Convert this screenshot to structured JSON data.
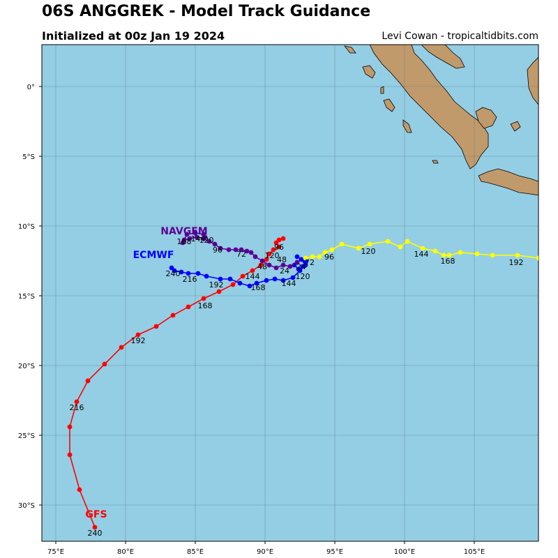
{
  "header": {
    "title": "06S ANGGREK - Model Track Guidance",
    "subtitle": "Initialized at 00z Jan 19 2024",
    "credit": "Levi Cowan - tropicaltidbits.com"
  },
  "colors": {
    "ocean": "#94cee4",
    "land": "#c19a6b",
    "grid": "#5f7f8a",
    "gfs": "#ff0000",
    "ecmwf": "#0000ff",
    "navgem": "#5a0096",
    "unlabeled": "#ffff00"
  },
  "chart_data": {
    "type": "scatter",
    "xlim": [
      74,
      109.6
    ],
    "ylim": [
      -32.6,
      3
    ],
    "x_ticks": [
      {
        "value": 75,
        "label": "75°E"
      },
      {
        "value": 80,
        "label": "80°E"
      },
      {
        "value": 85,
        "label": "85°E"
      },
      {
        "value": 90,
        "label": "90°E"
      },
      {
        "value": 95,
        "label": "95°E"
      },
      {
        "value": 100,
        "label": "100°E"
      },
      {
        "value": 105,
        "label": "105°E"
      }
    ],
    "y_ticks": [
      {
        "value": 0,
        "label": "0°"
      },
      {
        "value": -5,
        "label": "5°S"
      },
      {
        "value": -10,
        "label": "10°S"
      },
      {
        "value": -15,
        "label": "15°S"
      },
      {
        "value": -20,
        "label": "20°S"
      },
      {
        "value": -25,
        "label": "25°S"
      },
      {
        "value": -30,
        "label": "30°S"
      }
    ],
    "grid": true,
    "series": [
      {
        "name": "GFS",
        "color": "#ff0000",
        "label_lon": 77.9,
        "label_lat": -30.9,
        "points": [
          [
            91.3,
            -10.9
          ],
          [
            91.0,
            -11.0
          ],
          [
            90.8,
            -11.2
          ],
          [
            91.0,
            -11.5
          ],
          [
            90.6,
            -11.7
          ],
          [
            90.3,
            -12.0
          ],
          [
            90.1,
            -12.4
          ],
          [
            89.7,
            -12.8
          ],
          [
            89.1,
            -13.2
          ],
          [
            88.4,
            -13.6
          ],
          [
            87.7,
            -14.2
          ],
          [
            86.7,
            -14.7
          ],
          [
            85.6,
            -15.2
          ],
          [
            84.5,
            -15.8
          ],
          [
            83.4,
            -16.4
          ],
          [
            82.2,
            -17.2
          ],
          [
            80.9,
            -17.8
          ],
          [
            79.7,
            -18.7
          ],
          [
            78.5,
            -19.9
          ],
          [
            77.3,
            -21.1
          ],
          [
            76.5,
            -22.6
          ],
          [
            76.0,
            -24.4
          ],
          [
            76.0,
            -26.4
          ],
          [
            76.7,
            -28.9
          ],
          [
            77.8,
            -31.6
          ]
        ],
        "labels": [
          {
            "hour": "120",
            "lon": 90.5,
            "lat": -12.3
          },
          {
            "hour": "168",
            "lon": 85.7,
            "lat": -15.9
          },
          {
            "hour": "192",
            "lon": 80.9,
            "lat": -18.4
          },
          {
            "hour": "216",
            "lon": 76.5,
            "lat": -23.2
          },
          {
            "hour": "240",
            "lon": 77.8,
            "lat": -32.2
          }
        ]
      },
      {
        "name": "ECMWF",
        "color": "#0000ff",
        "label_lon": 82.0,
        "label_lat": -12.3,
        "points": [
          [
            92.3,
            -12.2
          ],
          [
            92.9,
            -12.5
          ],
          [
            92.7,
            -12.9
          ],
          [
            92.4,
            -13.1
          ],
          [
            92.1,
            -12.8
          ],
          [
            92.6,
            -12.4
          ],
          [
            92.9,
            -12.8
          ],
          [
            92.5,
            -13.2
          ],
          [
            92.0,
            -13.7
          ],
          [
            91.3,
            -13.9
          ],
          [
            90.7,
            -13.8
          ],
          [
            90.1,
            -13.9
          ],
          [
            89.4,
            -14.1
          ],
          [
            88.9,
            -14.3
          ],
          [
            88.2,
            -14.1
          ],
          [
            87.5,
            -13.8
          ],
          [
            86.8,
            -13.8
          ],
          [
            85.8,
            -13.6
          ],
          [
            85.2,
            -13.4
          ],
          [
            84.5,
            -13.4
          ],
          [
            84.0,
            -13.3
          ],
          [
            83.5,
            -13.2
          ],
          [
            83.3,
            -13.0
          ]
        ],
        "labels": [
          {
            "hour": "120",
            "lon": 92.7,
            "lat": -13.8
          },
          {
            "hour": "144",
            "lon": 91.7,
            "lat": -14.3
          },
          {
            "hour": "144",
            "lon": 89.1,
            "lat": -13.8
          },
          {
            "hour": "168",
            "lon": 89.5,
            "lat": -14.6
          },
          {
            "hour": "192",
            "lon": 86.5,
            "lat": -14.4
          },
          {
            "hour": "216",
            "lon": 84.6,
            "lat": -14.0
          },
          {
            "hour": "240",
            "lon": 83.4,
            "lat": -13.6
          }
        ]
      },
      {
        "name": "NAVGEM",
        "color": "#5a0096",
        "label_lon": 84.2,
        "label_lat": -10.6,
        "points": [
          [
            92.3,
            -12.6
          ],
          [
            91.8,
            -12.9
          ],
          [
            91.3,
            -12.8
          ],
          [
            90.8,
            -13.0
          ],
          [
            90.3,
            -12.8
          ],
          [
            89.8,
            -12.5
          ],
          [
            89.3,
            -12.2
          ],
          [
            89.0,
            -11.9
          ],
          [
            88.7,
            -11.8
          ],
          [
            88.3,
            -11.7
          ],
          [
            87.9,
            -11.7
          ],
          [
            87.4,
            -11.7
          ],
          [
            86.8,
            -11.6
          ],
          [
            86.4,
            -11.3
          ],
          [
            86.0,
            -11.1
          ],
          [
            85.6,
            -10.9
          ],
          [
            85.1,
            -10.8
          ],
          [
            84.6,
            -10.9
          ],
          [
            84.2,
            -11.0
          ],
          [
            84.1,
            -11.2
          ],
          [
            84.4,
            -10.6
          ],
          [
            85.0,
            -10.5
          ],
          [
            85.6,
            -10.6
          ],
          [
            85.7,
            -10.8
          ]
        ],
        "labels": [
          {
            "hour": "24",
            "lon": 91.4,
            "lat": -13.4
          },
          {
            "hour": "48",
            "lon": 89.8,
            "lat": -13.1
          },
          {
            "hour": "72",
            "lon": 88.3,
            "lat": -12.2
          },
          {
            "hour": "96",
            "lon": 86.6,
            "lat": -11.9
          },
          {
            "hour": "120",
            "lon": 85.8,
            "lat": -11.2
          },
          {
            "hour": "144",
            "lon": 85.2,
            "lat": -11.1
          },
          {
            "hour": "168",
            "lon": 84.2,
            "lat": -11.3
          }
        ]
      },
      {
        "name": "",
        "color": "#ffff00",
        "points": [
          [
            92.9,
            -12.3
          ],
          [
            93.4,
            -12.2
          ],
          [
            93.9,
            -12.2
          ],
          [
            94.3,
            -11.9
          ],
          [
            94.8,
            -11.7
          ],
          [
            95.5,
            -11.3
          ],
          [
            96.7,
            -11.6
          ],
          [
            97.5,
            -11.3
          ],
          [
            98.8,
            -11.1
          ],
          [
            99.7,
            -11.5
          ],
          [
            100.2,
            -11.1
          ],
          [
            101.3,
            -11.6
          ],
          [
            102.2,
            -11.8
          ],
          [
            102.8,
            -12.1
          ],
          [
            103.2,
            -12.1
          ],
          [
            104.0,
            -11.9
          ],
          [
            105.2,
            -12.0
          ],
          [
            106.3,
            -12.1
          ],
          [
            108.1,
            -12.1
          ],
          [
            109.6,
            -12.3
          ]
        ],
        "labels": [
          {
            "hour": "72",
            "lon": 93.2,
            "lat": -12.8
          },
          {
            "hour": "96",
            "lon": 94.6,
            "lat": -12.4
          },
          {
            "hour": "120",
            "lon": 97.4,
            "lat": -12.0
          },
          {
            "hour": "144",
            "lon": 101.2,
            "lat": -12.2
          },
          {
            "hour": "168",
            "lon": 103.1,
            "lat": -12.7
          },
          {
            "hour": "192",
            "lon": 108.0,
            "lat": -12.8
          }
        ]
      }
    ],
    "extra_labels": [
      {
        "hour": "96",
        "lon": 91.0,
        "lat": -11.7
      },
      {
        "hour": "48",
        "lon": 91.2,
        "lat": -12.6
      },
      {
        "hour": "24",
        "lon": 92.6,
        "lat": -13.1
      }
    ]
  }
}
